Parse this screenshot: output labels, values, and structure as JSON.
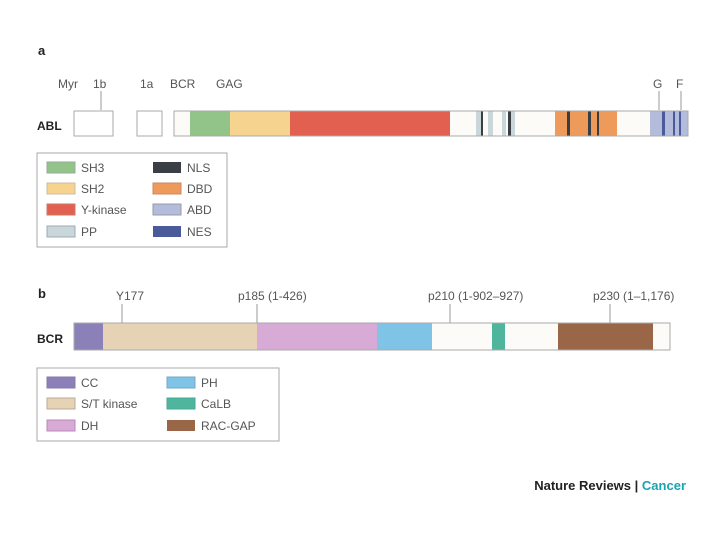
{
  "panel_a": {
    "letter": "a",
    "gene": "ABL",
    "exon_labels": [
      "Myr",
      "1b",
      "1a",
      "BCR",
      "GAG",
      "G",
      "F"
    ],
    "legend": [
      {
        "label": "SH3",
        "color": "#92c48a"
      },
      {
        "label": "SH2",
        "color": "#f6d38f"
      },
      {
        "label": "Y-kinase",
        "color": "#e2604f"
      },
      {
        "label": "PP",
        "color": "#c9d6da"
      },
      {
        "label": "NLS",
        "color": "#3a3f46"
      },
      {
        "label": "DBD",
        "color": "#ee9a5a"
      },
      {
        "label": "ABD",
        "color": "#b4bcdc"
      },
      {
        "label": "NES",
        "color": "#4a5a9a"
      }
    ]
  },
  "panel_b": {
    "letter": "b",
    "gene": "BCR",
    "annotations": [
      "Y177",
      "p185 (1-426)",
      "p210 (1-902–927)",
      "p230 (1–1,176)"
    ],
    "legend": [
      {
        "label": "CC",
        "color": "#8b80b8"
      },
      {
        "label": "S/T kinase",
        "color": "#e6d2b4"
      },
      {
        "label": "DH",
        "color": "#d8aad6"
      },
      {
        "label": "PH",
        "color": "#7fc4e6"
      },
      {
        "label": "CaLB",
        "color": "#4fb59c"
      },
      {
        "label": "RAC-GAP",
        "color": "#9a6648"
      }
    ]
  },
  "credit": {
    "journal": "Nature Reviews",
    "separator": "|",
    "section": "Cancer"
  }
}
